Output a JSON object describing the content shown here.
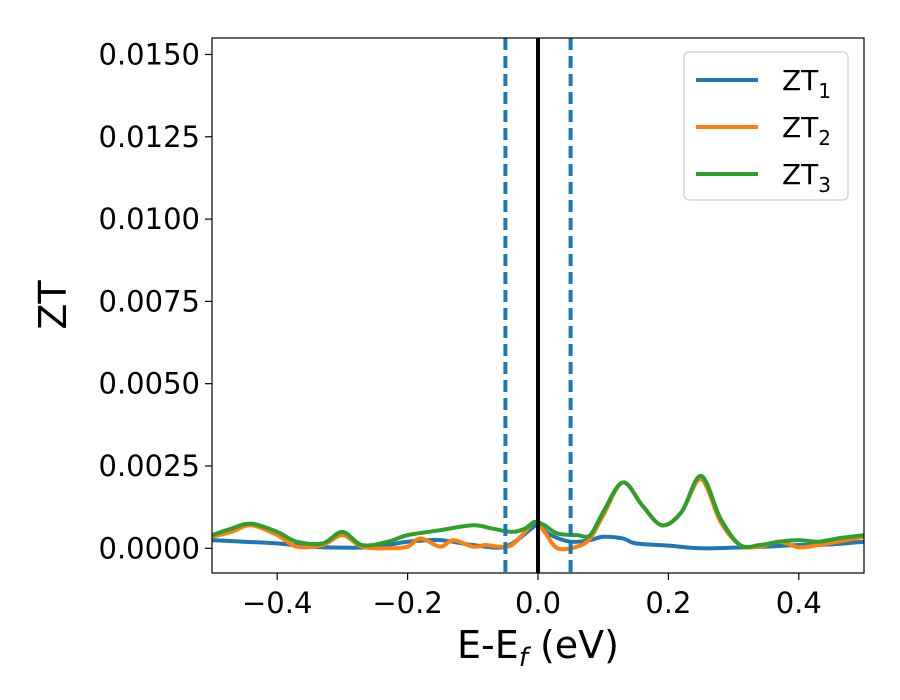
{
  "chart_data": {
    "type": "line",
    "xlabel": {
      "base": "E-E",
      "sub": "f",
      "suffix": " (eV)"
    },
    "ylabel": "ZT",
    "xlim": [
      -0.5,
      0.5
    ],
    "ylim": [
      -0.00075,
      0.0155
    ],
    "x_ticks": [
      -0.4,
      -0.2,
      0.0,
      0.2,
      0.4
    ],
    "x_tick_labels": [
      "−0.4",
      "−0.2",
      "0.0",
      "0.2",
      "0.4"
    ],
    "y_ticks": [
      0.0,
      0.0025,
      0.005,
      0.0075,
      0.01,
      0.0125,
      0.015
    ],
    "y_tick_labels": [
      "0.0000",
      "0.0025",
      "0.0050",
      "0.0075",
      "0.0100",
      "0.0125",
      "0.0150"
    ],
    "grid": false,
    "legend_position": "top-right",
    "vlines": [
      {
        "x": 0.0,
        "style": "solid",
        "color": "#000000"
      },
      {
        "x": -0.05,
        "style": "dashed",
        "color": "#1f77b4"
      },
      {
        "x": 0.05,
        "style": "dashed",
        "color": "#1f77b4"
      }
    ],
    "series": [
      {
        "name": "ZT",
        "sub": "1",
        "color": "#1f77b4",
        "x": [
          -0.5,
          -0.45,
          -0.4,
          -0.35,
          -0.3,
          -0.25,
          -0.2,
          -0.15,
          -0.1,
          -0.05,
          -0.01,
          0.0,
          0.02,
          0.05,
          0.08,
          0.1,
          0.13,
          0.15,
          0.2,
          0.25,
          0.3,
          0.35,
          0.4,
          0.45,
          0.5
        ],
        "y": [
          0.00025,
          0.0002,
          0.00015,
          5e-05,
          2e-05,
          4e-05,
          0.0002,
          0.00025,
          0.0001,
          5e-05,
          0.0006,
          0.0007,
          0.0004,
          0.0002,
          0.00025,
          0.00035,
          0.0003,
          0.00015,
          8e-05,
          0.0,
          2e-05,
          5e-05,
          0.0001,
          0.00012,
          0.0002
        ]
      },
      {
        "name": "ZT",
        "sub": "2",
        "color": "#ff7f0e",
        "x": [
          -0.5,
          -0.47,
          -0.44,
          -0.4,
          -0.37,
          -0.33,
          -0.3,
          -0.27,
          -0.23,
          -0.2,
          -0.18,
          -0.15,
          -0.13,
          -0.1,
          -0.08,
          -0.06,
          -0.04,
          -0.02,
          -0.005,
          0.01,
          0.03,
          0.06,
          0.08,
          0.1,
          0.13,
          0.16,
          0.19,
          0.22,
          0.25,
          0.28,
          0.31,
          0.34,
          0.37,
          0.4,
          0.43,
          0.46,
          0.5
        ],
        "y": [
          0.00035,
          0.0005,
          0.0007,
          0.0004,
          5e-05,
          0.0001,
          0.0004,
          5e-05,
          0.0,
          5e-05,
          0.0003,
          5e-05,
          0.00025,
          5e-05,
          0.0001,
          5e-05,
          0.0001,
          0.0005,
          0.0008,
          0.0005,
          0.0,
          5e-05,
          0.0003,
          0.001,
          0.002,
          0.0013,
          0.0007,
          0.0011,
          0.0021,
          0.0008,
          0.0001,
          5e-05,
          0.0002,
          3e-05,
          0.0001,
          0.0002,
          0.00035
        ]
      },
      {
        "name": "ZT",
        "sub": "3",
        "color": "#2ca02c",
        "x": [
          -0.5,
          -0.47,
          -0.44,
          -0.4,
          -0.37,
          -0.33,
          -0.3,
          -0.27,
          -0.23,
          -0.2,
          -0.15,
          -0.1,
          -0.07,
          -0.04,
          -0.02,
          -0.005,
          0.01,
          0.03,
          0.06,
          0.08,
          0.1,
          0.13,
          0.16,
          0.19,
          0.22,
          0.25,
          0.28,
          0.31,
          0.34,
          0.37,
          0.4,
          0.43,
          0.46,
          0.5
        ],
        "y": [
          0.0004,
          0.0006,
          0.00075,
          0.0005,
          0.0002,
          0.00015,
          0.0005,
          0.0001,
          0.0002,
          0.0004,
          0.00055,
          0.0007,
          0.0006,
          0.0005,
          0.0006,
          0.0008,
          0.0007,
          0.00045,
          0.0004,
          0.0004,
          0.0011,
          0.002,
          0.0013,
          0.0007,
          0.0011,
          0.0022,
          0.0009,
          0.0001,
          0.0001,
          0.0002,
          0.00025,
          0.0002,
          0.0003,
          0.0004
        ]
      }
    ]
  }
}
